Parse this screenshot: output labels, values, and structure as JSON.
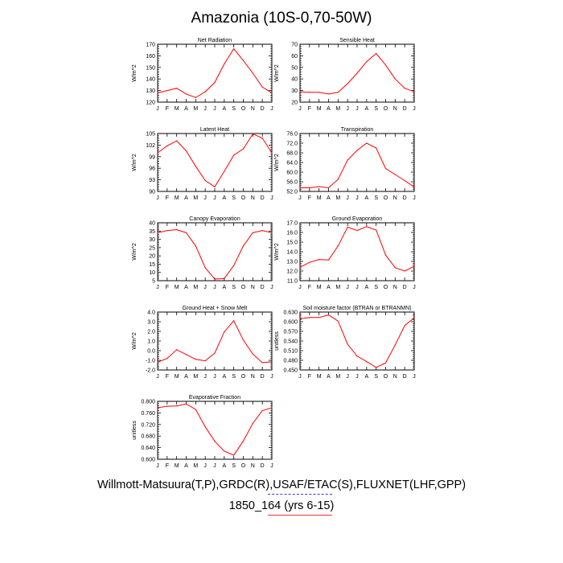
{
  "title": "Amazonia (10S-0,70-50W)",
  "footer": {
    "line1": "Willmott-Matsuura(T,P),GRDC(R),USAF/ETAC(S),FLUXNET(LHF,GPP)",
    "line2": "1850_164 (yrs 6-15)"
  },
  "colors": {
    "model_line": "#ff0000",
    "obs_dash": "#3c3cc8",
    "axis": "#000000"
  },
  "chart_data": [
    {
      "type": "line",
      "title": "Net Radiation",
      "ylabel": "W/m^2",
      "x": [
        "J",
        "F",
        "M",
        "A",
        "M",
        "J",
        "J",
        "A",
        "S",
        "O",
        "N",
        "D",
        "J"
      ],
      "ylim": [
        120,
        170
      ],
      "yticks": [
        "120",
        "130",
        "140",
        "150",
        "160",
        "170"
      ],
      "grid": false,
      "series": [
        {
          "values": [
            128,
            130,
            132,
            127,
            124,
            129,
            137,
            153,
            166,
            156,
            145,
            133,
            128
          ]
        }
      ]
    },
    {
      "type": "line",
      "title": "Sensible Heat",
      "ylabel": "W/m^2",
      "x": [
        "J",
        "F",
        "M",
        "A",
        "M",
        "J",
        "J",
        "A",
        "S",
        "O",
        "N",
        "D",
        "J"
      ],
      "ylim": [
        20,
        70
      ],
      "yticks": [
        "20",
        "30",
        "40",
        "50",
        "60",
        "70"
      ],
      "grid": false,
      "series": [
        {
          "values": [
            29,
            28.5,
            28.5,
            27,
            28.5,
            36,
            45,
            55,
            62,
            52,
            40,
            32,
            29
          ]
        }
      ]
    },
    {
      "type": "line",
      "title": "Latent Heat",
      "ylabel": "W/m^2",
      "x": [
        "J",
        "F",
        "M",
        "A",
        "M",
        "J",
        "J",
        "A",
        "S",
        "O",
        "N",
        "D",
        "J"
      ],
      "ylim": [
        90,
        105
      ],
      "yticks": [
        "90",
        "93",
        "96",
        "99",
        "102",
        "105"
      ],
      "grid": false,
      "series": [
        {
          "values": [
            100,
            101.8,
            103.1,
            100.5,
            96.5,
            92.8,
            91.2,
            95.2,
            99.4,
            101,
            104.9,
            103.8,
            100
          ]
        }
      ]
    },
    {
      "type": "line",
      "title": "Transpiration",
      "ylabel": "W/m^2",
      "x": [
        "J",
        "F",
        "M",
        "A",
        "M",
        "J",
        "J",
        "A",
        "S",
        "O",
        "N",
        "D",
        "J"
      ],
      "ylim": [
        52,
        76
      ],
      "yticks": [
        "52.0",
        "56.0",
        "60.0",
        "64.0",
        "68.0",
        "72.0",
        "76.0"
      ],
      "grid": false,
      "series": [
        {
          "values": [
            53.5,
            53.5,
            54,
            53.5,
            57,
            65,
            69,
            72,
            70,
            61.5,
            59,
            56.5,
            53.8
          ]
        }
      ]
    },
    {
      "type": "line",
      "title": "Canopy Evaporation",
      "ylabel": "W/m^2",
      "x": [
        "J",
        "F",
        "M",
        "A",
        "M",
        "J",
        "J",
        "A",
        "S",
        "O",
        "N",
        "D",
        "J"
      ],
      "ylim": [
        5,
        40
      ],
      "yticks": [
        "5",
        "10",
        "15",
        "20",
        "25",
        "30",
        "35",
        "40"
      ],
      "grid": false,
      "series": [
        {
          "values": [
            34,
            35.3,
            35.8,
            34,
            26,
            12.8,
            6,
            6.3,
            14.2,
            26,
            34,
            35.3,
            34
          ]
        }
      ]
    },
    {
      "type": "line",
      "title": "Ground Evaporation",
      "ylabel": "W/m^2",
      "x": [
        "J",
        "F",
        "M",
        "A",
        "M",
        "J",
        "J",
        "A",
        "S",
        "O",
        "N",
        "D",
        "J"
      ],
      "ylim": [
        11,
        17
      ],
      "yticks": [
        "11.0",
        "12.0",
        "13.0",
        "14.0",
        "15.0",
        "16.0",
        "17.0"
      ],
      "grid": false,
      "series": [
        {
          "values": [
            12.4,
            12.9,
            13.2,
            13.15,
            14.6,
            16.55,
            16.2,
            16.6,
            16.25,
            13.65,
            12.35,
            12.0,
            12.5
          ]
        }
      ]
    },
    {
      "type": "line",
      "title": "Ground Heat + Snow Melt",
      "ylabel": "W/m^2",
      "x": [
        "J",
        "F",
        "M",
        "A",
        "M",
        "J",
        "J",
        "A",
        "S",
        "O",
        "N",
        "D",
        "J"
      ],
      "ylim": [
        -2,
        4
      ],
      "yticks": [
        "-2.0",
        "-1.0",
        "0.0",
        "1.0",
        "2.0",
        "3.0",
        "4.0"
      ],
      "grid": false,
      "series": [
        {
          "values": [
            -1.2,
            -0.8,
            0.1,
            -0.4,
            -0.9,
            -1.05,
            -0.25,
            1.95,
            3.1,
            1.1,
            -0.35,
            -1.25,
            -1.15
          ]
        }
      ]
    },
    {
      "type": "line",
      "title": "Soil moisture factor (BTRAN or BTRANMN)",
      "ylabel": "unitless",
      "x": [
        "J",
        "F",
        "M",
        "A",
        "M",
        "J",
        "J",
        "A",
        "S",
        "O",
        "N",
        "D",
        "J"
      ],
      "ylim": [
        0.45,
        0.63
      ],
      "yticks": [
        "0.450",
        "0.480",
        "0.510",
        "0.540",
        "0.570",
        "0.600",
        "0.630"
      ],
      "grid": false,
      "series": [
        {
          "values": [
            0.609,
            0.613,
            0.613,
            0.621,
            0.602,
            0.53,
            0.493,
            0.476,
            0.458,
            0.472,
            0.528,
            0.588,
            0.612
          ]
        }
      ]
    },
    {
      "type": "line",
      "title": "Evaporative Fraction",
      "ylabel": "unitless",
      "x": [
        "J",
        "F",
        "M",
        "A",
        "M",
        "J",
        "J",
        "A",
        "S",
        "O",
        "N",
        "D",
        "J"
      ],
      "ylim": [
        0.6,
        0.8
      ],
      "yticks": [
        "0.600",
        "0.640",
        "0.680",
        "0.720",
        "0.760",
        "0.800"
      ],
      "grid": false,
      "series": [
        {
          "values": [
            0.778,
            0.783,
            0.784,
            0.791,
            0.772,
            0.712,
            0.662,
            0.628,
            0.614,
            0.663,
            0.724,
            0.768,
            0.778
          ]
        }
      ]
    }
  ]
}
